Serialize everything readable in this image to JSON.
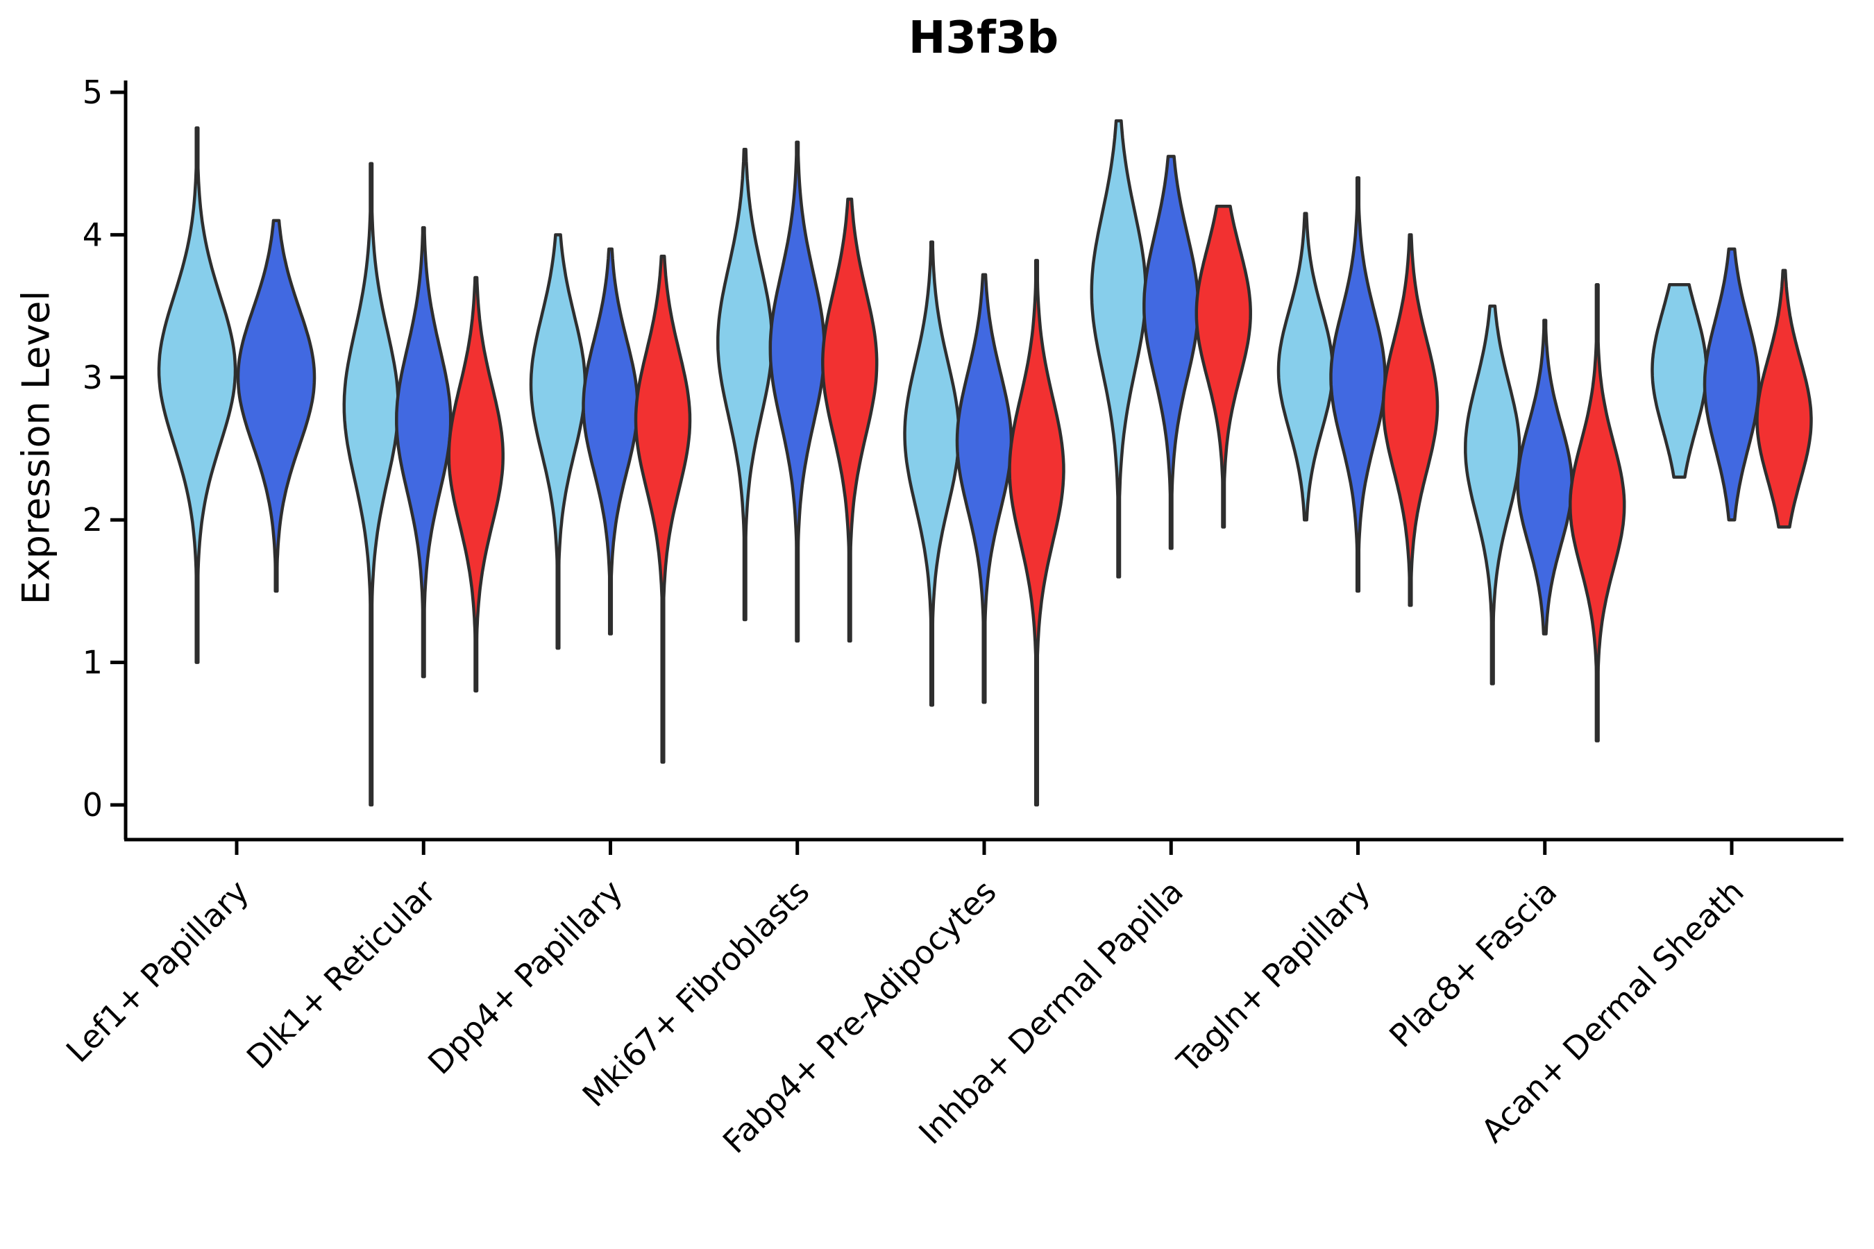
{
  "title": "H3f3b",
  "ylabel": "Expression Level",
  "chart_data": {
    "type": "violin",
    "title": "H3f3b",
    "xlabel": "",
    "ylabel": "Expression Level",
    "ylim": [
      -0.25,
      5.05
    ],
    "y_ticks": [
      "0",
      "1",
      "2",
      "3",
      "4",
      "5"
    ],
    "x_tick_rotation": 45,
    "grid": "off",
    "legend": "none",
    "spines": [
      "left",
      "bottom"
    ],
    "colors": {
      "hue1": "#87CEEB",
      "hue2": "#4169E1",
      "hue3": "#F23131",
      "outline": "#2E2E2E",
      "axis": "#000000"
    },
    "categories": [
      "Lef1+ Papillary",
      "Dlk1+ Reticular",
      "Dpp4+ Papillary",
      "Mki67+ Fibroblasts",
      "Fabp4+ Pre-Adipocytes",
      "Inhba+ Dermal Papilla",
      "Tagln+ Papillary",
      "Plac8+ Fascia",
      "Acan+ Dermal Sheath"
    ],
    "groups": [
      {
        "category": "Lef1+ Papillary",
        "violins": [
          {
            "hue": "hue1",
            "min": 1.0,
            "max": 4.75,
            "mode": 3.05,
            "spread": 0.52
          },
          {
            "hue": "hue2",
            "min": 1.5,
            "max": 4.1,
            "mode": 3.0,
            "spread": 0.48
          }
        ]
      },
      {
        "category": "Dlk1+ Reticular",
        "violins": [
          {
            "hue": "hue1",
            "min": 0.0,
            "max": 4.5,
            "mode": 2.8,
            "spread": 0.52
          },
          {
            "hue": "hue2",
            "min": 0.9,
            "max": 4.05,
            "mode": 2.7,
            "spread": 0.5
          },
          {
            "hue": "hue3",
            "min": 0.8,
            "max": 3.7,
            "mode": 2.45,
            "spread": 0.48
          }
        ]
      },
      {
        "category": "Dpp4+ Papillary",
        "violins": [
          {
            "hue": "hue1",
            "min": 1.1,
            "max": 4.0,
            "mode": 2.95,
            "spread": 0.48
          },
          {
            "hue": "hue2",
            "min": 1.2,
            "max": 3.9,
            "mode": 2.8,
            "spread": 0.46
          },
          {
            "hue": "hue3",
            "min": 0.3,
            "max": 3.85,
            "mode": 2.7,
            "spread": 0.48
          }
        ]
      },
      {
        "category": "Mki67+ Fibroblasts",
        "violins": [
          {
            "hue": "hue1",
            "min": 1.3,
            "max": 4.6,
            "mode": 3.25,
            "spread": 0.52
          },
          {
            "hue": "hue2",
            "min": 1.15,
            "max": 4.65,
            "mode": 3.2,
            "spread": 0.52
          },
          {
            "hue": "hue3",
            "min": 1.15,
            "max": 4.25,
            "mode": 3.1,
            "spread": 0.5
          }
        ]
      },
      {
        "category": "Fabp4+ Pre-Adipocytes",
        "violins": [
          {
            "hue": "hue1",
            "min": 0.7,
            "max": 3.95,
            "mode": 2.6,
            "spread": 0.5
          },
          {
            "hue": "hue2",
            "min": 0.72,
            "max": 3.72,
            "mode": 2.55,
            "spread": 0.48
          },
          {
            "hue": "hue3",
            "min": 0.0,
            "max": 3.82,
            "mode": 2.35,
            "spread": 0.5
          }
        ]
      },
      {
        "category": "Inhba+ Dermal Papilla",
        "violins": [
          {
            "hue": "hue1",
            "min": 1.6,
            "max": 4.8,
            "mode": 3.6,
            "spread": 0.55
          },
          {
            "hue": "hue2",
            "min": 1.8,
            "max": 4.55,
            "mode": 3.5,
            "spread": 0.5
          },
          {
            "hue": "hue3",
            "min": 1.95,
            "max": 4.2,
            "mode": 3.45,
            "spread": 0.45
          }
        ]
      },
      {
        "category": "Tagln+ Papillary",
        "violins": [
          {
            "hue": "hue1",
            "min": 2.0,
            "max": 4.15,
            "mode": 3.05,
            "spread": 0.42
          },
          {
            "hue": "hue2",
            "min": 1.5,
            "max": 4.4,
            "mode": 3.0,
            "spread": 0.46
          },
          {
            "hue": "hue3",
            "min": 1.4,
            "max": 4.0,
            "mode": 2.8,
            "spread": 0.46
          }
        ]
      },
      {
        "category": "Plac8+ Fascia",
        "violins": [
          {
            "hue": "hue1",
            "min": 0.85,
            "max": 3.5,
            "mode": 2.5,
            "spread": 0.46
          },
          {
            "hue": "hue2",
            "min": 1.2,
            "max": 3.4,
            "mode": 2.25,
            "spread": 0.42
          },
          {
            "hue": "hue3",
            "min": 0.45,
            "max": 3.65,
            "mode": 2.1,
            "spread": 0.44
          }
        ]
      },
      {
        "category": "Acan+ Dermal Sheath",
        "violins": [
          {
            "hue": "hue1",
            "min": 2.3,
            "max": 3.65,
            "mode": 3.05,
            "spread": 0.42
          },
          {
            "hue": "hue2",
            "min": 2.0,
            "max": 3.9,
            "mode": 2.95,
            "spread": 0.45
          },
          {
            "hue": "hue3",
            "min": 1.95,
            "max": 3.75,
            "mode": 2.7,
            "spread": 0.42
          }
        ]
      }
    ]
  }
}
